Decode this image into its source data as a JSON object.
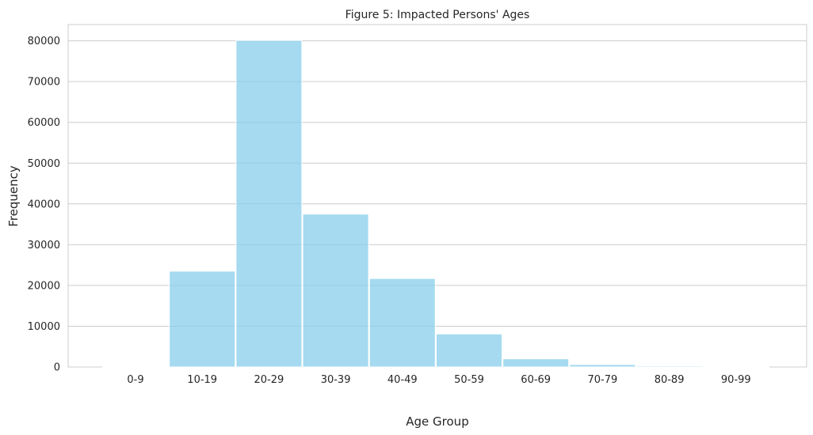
{
  "chart_data": {
    "type": "bar",
    "title": "Figure 5: Impacted Persons' Ages",
    "xlabel": "Age Group",
    "ylabel": "Frequency",
    "categories": [
      "0-9",
      "10-19",
      "20-29",
      "30-39",
      "40-49",
      "50-59",
      "60-69",
      "70-79",
      "80-89",
      "90-99"
    ],
    "values": [
      200,
      23500,
      80100,
      37500,
      21700,
      8100,
      2000,
      600,
      250,
      100
    ],
    "ylim": [
      0,
      84000
    ],
    "yticks": [
      0,
      10000,
      20000,
      30000,
      40000,
      50000,
      60000,
      70000,
      80000
    ],
    "ytick_labels": [
      "0",
      "10000",
      "20000",
      "30000",
      "40000",
      "50000",
      "60000",
      "70000",
      "80000"
    ],
    "grid": "horizontal",
    "bar_color": "#87ceeb"
  }
}
